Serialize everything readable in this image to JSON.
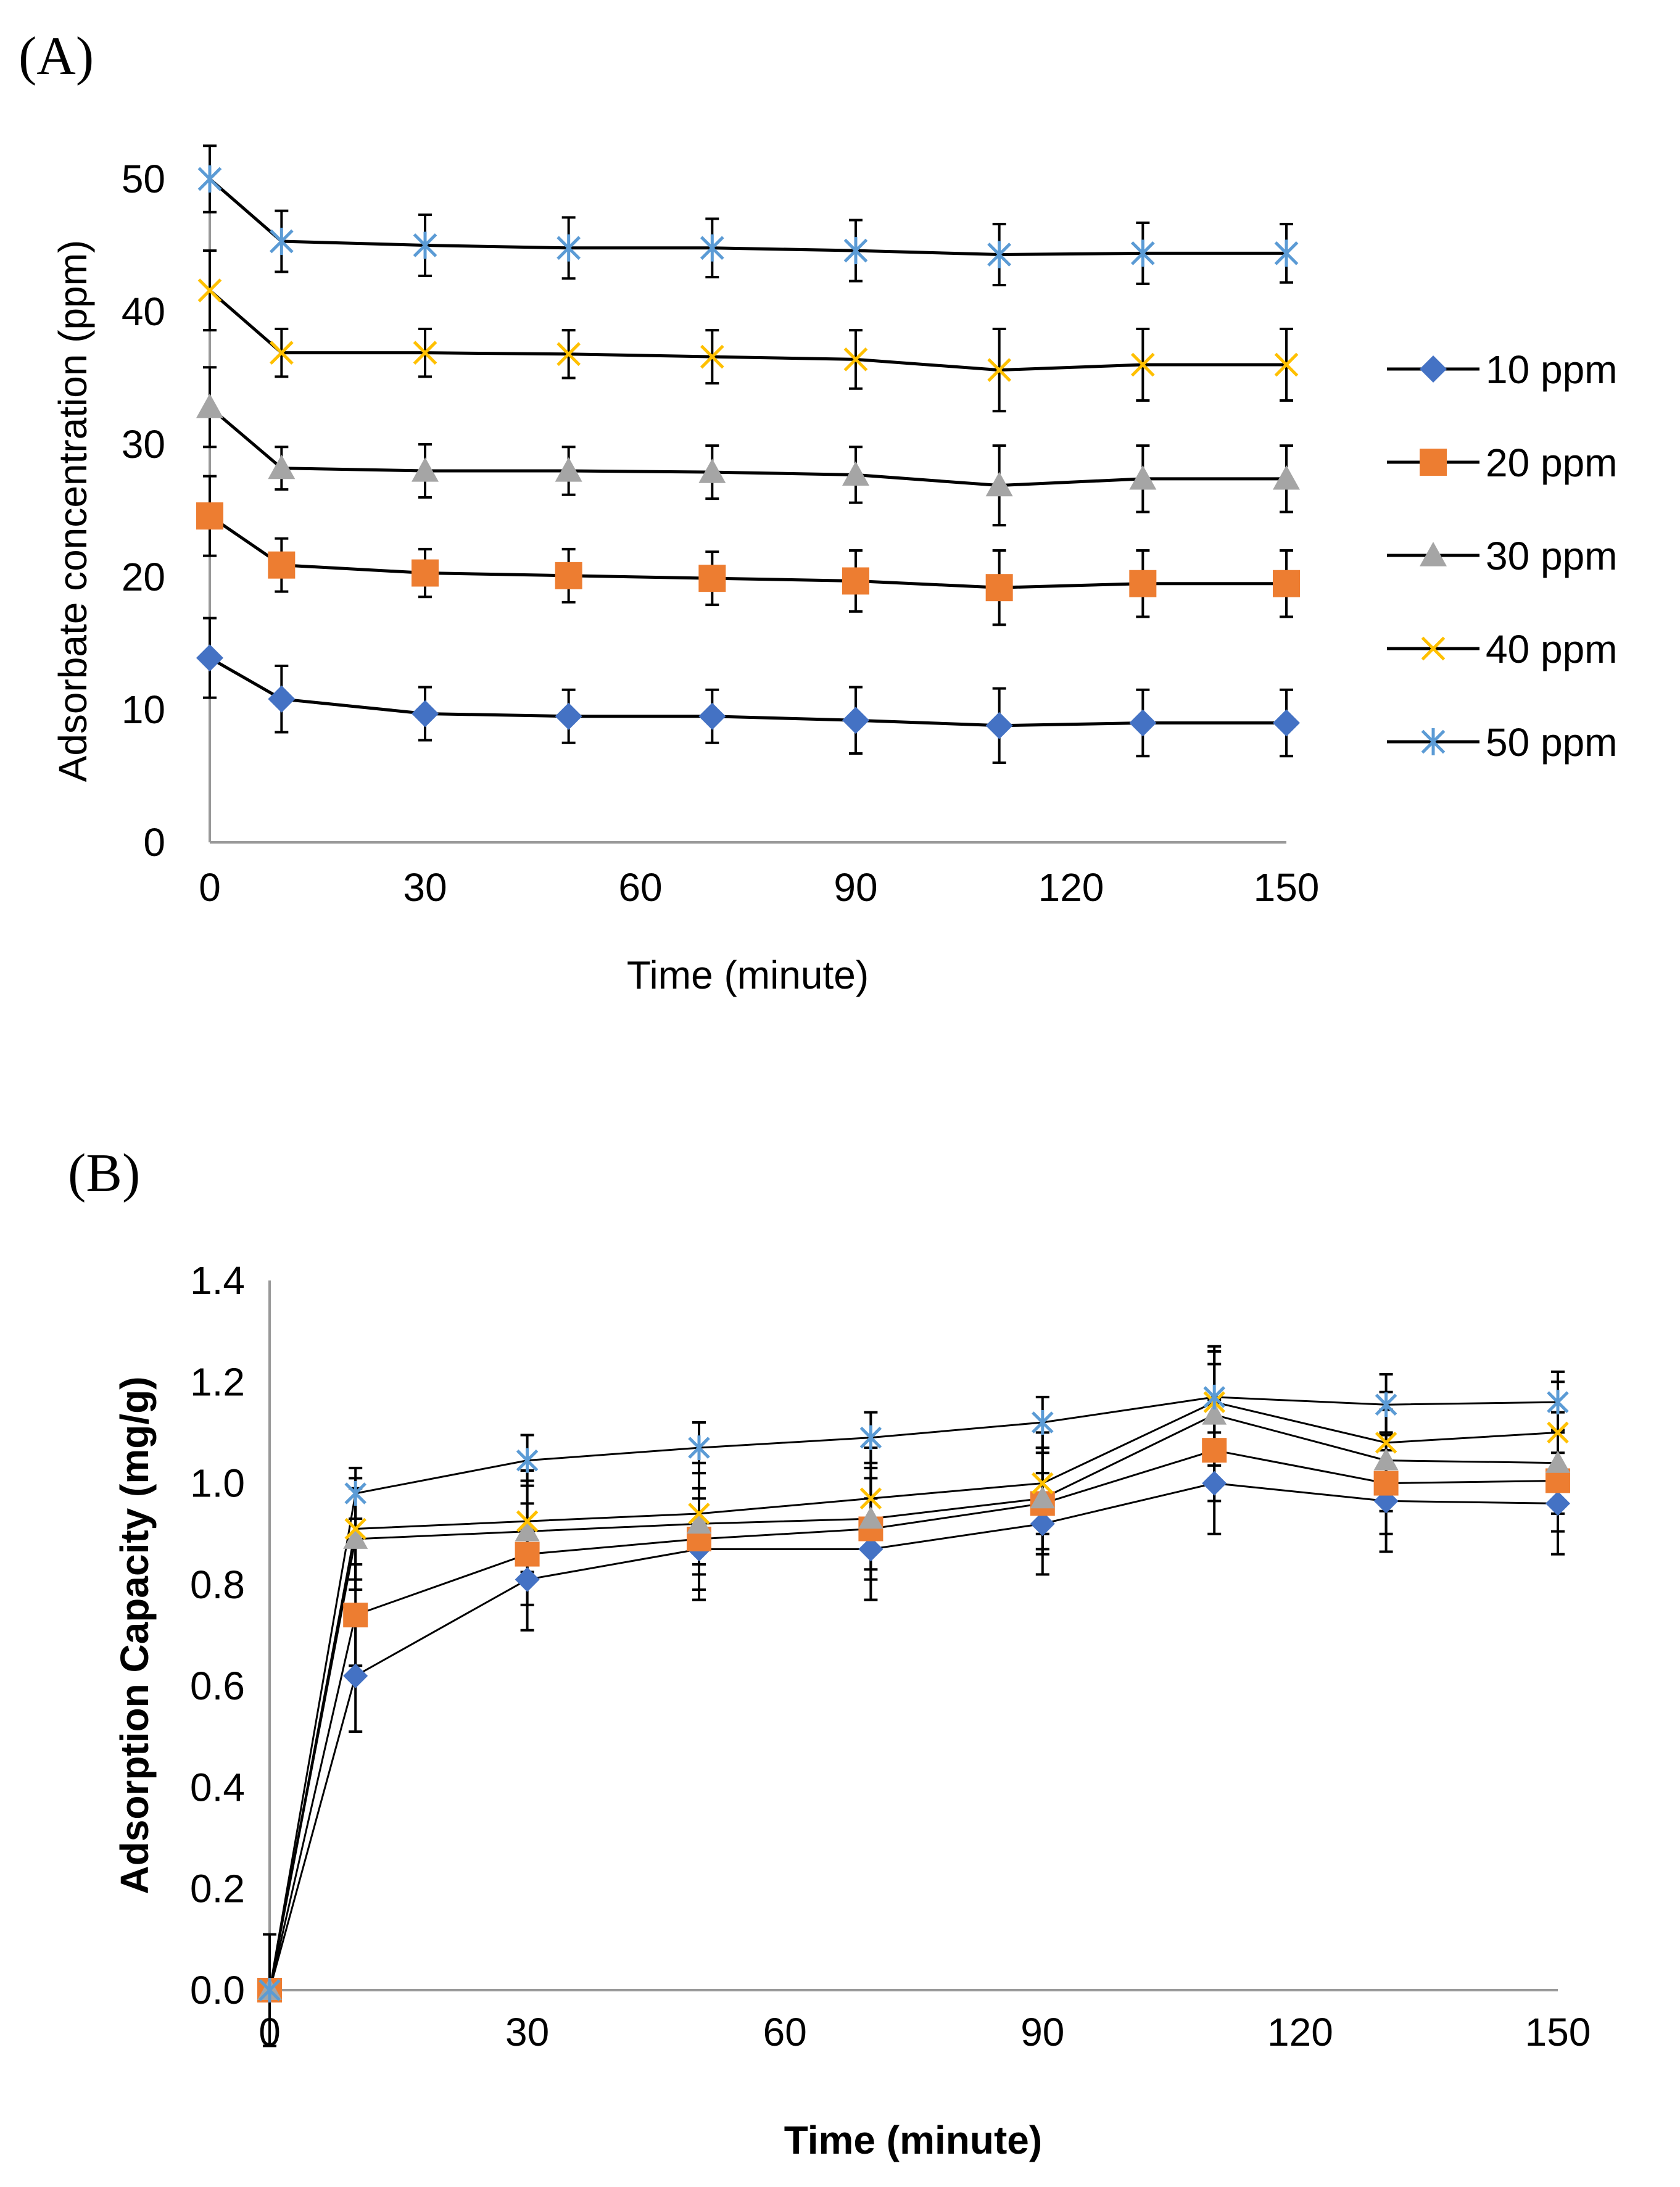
{
  "chart_data": [
    {
      "panel": "(A)",
      "type": "line",
      "title": "",
      "xlabel": "Time (minute)",
      "ylabel": "Adsorbate concentration (ppm)",
      "xlim": [
        0,
        150
      ],
      "ylim": [
        0,
        50
      ],
      "xticks": [
        0,
        30,
        60,
        90,
        120,
        150
      ],
      "yticks": [
        0,
        10,
        20,
        30,
        40,
        50
      ],
      "grid": false,
      "legend_position": "right",
      "x": [
        0,
        10,
        30,
        50,
        70,
        90,
        110,
        130,
        150
      ],
      "series": [
        {
          "name": "10 ppm",
          "marker": "diamond",
          "color": "#4472C4",
          "values": [
            13.9,
            10.8,
            9.7,
            9.5,
            9.5,
            9.2,
            8.8,
            9.0,
            9.0
          ],
          "errors": [
            3.0,
            2.5,
            2.0,
            2.0,
            2.0,
            2.5,
            2.8,
            2.5,
            2.5
          ]
        },
        {
          "name": "20 ppm",
          "marker": "square",
          "color": "#ED7D31",
          "values": [
            24.6,
            20.9,
            20.3,
            20.1,
            19.9,
            19.7,
            19.2,
            19.5,
            19.5
          ],
          "errors": [
            3.0,
            2.0,
            1.8,
            2.0,
            2.0,
            2.3,
            2.8,
            2.5,
            2.5
          ]
        },
        {
          "name": "30 ppm",
          "marker": "triangle",
          "color": "#A5A5A5",
          "values": [
            32.8,
            28.2,
            28.0,
            28.0,
            27.9,
            27.7,
            26.9,
            27.4,
            27.4
          ],
          "errors": [
            3.0,
            1.6,
            2.0,
            1.8,
            2.0,
            2.1,
            3.0,
            2.5,
            2.5
          ]
        },
        {
          "name": "40 ppm",
          "marker": "x",
          "color": "#FFC000",
          "values": [
            41.6,
            36.9,
            36.9,
            36.8,
            36.6,
            36.4,
            35.6,
            36.0,
            36.0
          ],
          "errors": [
            3.0,
            1.8,
            1.8,
            1.8,
            2.0,
            2.2,
            3.1,
            2.7,
            2.7
          ]
        },
        {
          "name": "50 ppm",
          "marker": "star",
          "color": "#5B9BD5",
          "values": [
            50.0,
            45.3,
            45.0,
            44.8,
            44.8,
            44.6,
            44.3,
            44.4,
            44.4
          ],
          "errors": [
            2.5,
            2.3,
            2.3,
            2.3,
            2.2,
            2.3,
            2.3,
            2.3,
            2.2
          ]
        }
      ]
    },
    {
      "panel": "(B)",
      "type": "line",
      "title": "",
      "xlabel": "Time (minute)",
      "ylabel": "Adsorption Capacity (mg/g)",
      "xlim": [
        0,
        150
      ],
      "ylim": [
        0,
        1.4
      ],
      "xticks": [
        0,
        30,
        60,
        90,
        120,
        150
      ],
      "yticks": [
        "0.0",
        "0.2",
        "0.4",
        "0.6",
        "0.8",
        "1.0",
        "1.2",
        "1.4"
      ],
      "grid": false,
      "legend_position": "none",
      "x": [
        0,
        10,
        30,
        50,
        70,
        90,
        110,
        130,
        150
      ],
      "series": [
        {
          "name": "10 ppm",
          "marker": "diamond",
          "color": "#4472C4",
          "values": [
            0.0,
            0.62,
            0.81,
            0.87,
            0.87,
            0.92,
            1.0,
            0.965,
            0.96
          ],
          "errors": [
            0.11,
            0.11,
            0.1,
            0.1,
            0.1,
            0.1,
            0.1,
            0.1,
            0.1
          ]
        },
        {
          "name": "20 ppm",
          "marker": "square",
          "color": "#ED7D31",
          "values": [
            0.0,
            0.74,
            0.86,
            0.89,
            0.91,
            0.96,
            1.065,
            1.0,
            1.005
          ],
          "errors": [
            0.0,
            0.1,
            0.1,
            0.1,
            0.1,
            0.1,
            0.1,
            0.1,
            0.1
          ]
        },
        {
          "name": "30 ppm",
          "marker": "triangle",
          "color": "#A5A5A5",
          "values": [
            0.0,
            0.89,
            0.905,
            0.92,
            0.93,
            0.97,
            1.135,
            1.045,
            1.04
          ],
          "errors": [
            0.0,
            0.1,
            0.1,
            0.1,
            0.1,
            0.1,
            0.1,
            0.1,
            0.1
          ]
        },
        {
          "name": "40 ppm",
          "marker": "x",
          "color": "#FFC000",
          "values": [
            0.0,
            0.91,
            0.925,
            0.94,
            0.97,
            1.0,
            1.16,
            1.08,
            1.1
          ],
          "errors": [
            0.0,
            0.1,
            0.1,
            0.1,
            0.1,
            0.1,
            0.1,
            0.1,
            0.1
          ]
        },
        {
          "name": "50 ppm",
          "marker": "star",
          "color": "#5B9BD5",
          "values": [
            0.0,
            0.98,
            1.045,
            1.07,
            1.09,
            1.12,
            1.17,
            1.155,
            1.16
          ],
          "errors": [
            0.0,
            0.05,
            0.05,
            0.05,
            0.05,
            0.05,
            0.1,
            0.06,
            0.06
          ]
        }
      ]
    }
  ]
}
